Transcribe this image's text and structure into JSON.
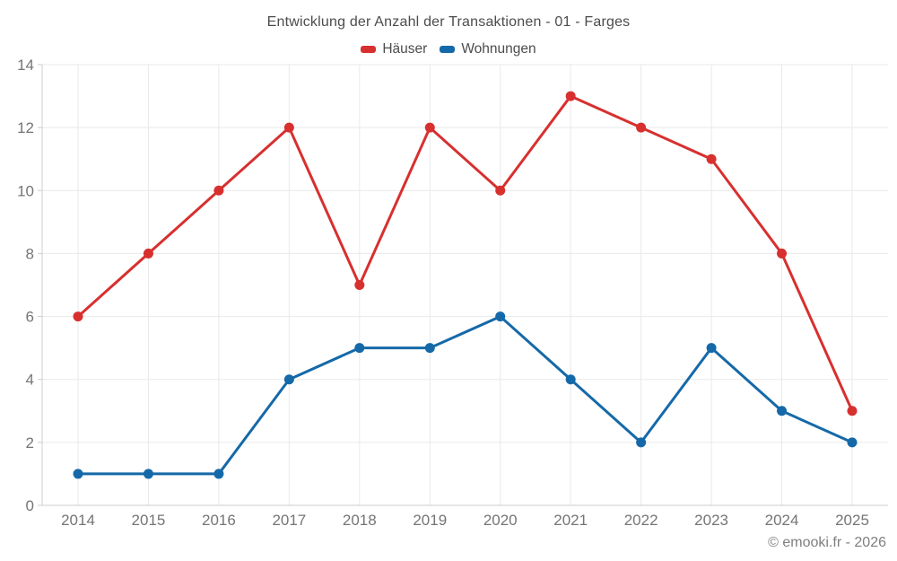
{
  "header": {
    "title": "Entwicklung der Anzahl der Transaktionen - 01 - Farges"
  },
  "footer": {
    "credit": "© emooki.fr - 2026"
  },
  "theme": {
    "background": "#ffffff",
    "grid_color": "#e9e9e9",
    "axis_color": "#cccccc",
    "tick_label_color": "#757575",
    "title_color": "#4c4c4c",
    "footer_color": "#7f7f7f"
  },
  "chart_data": {
    "type": "line",
    "title": "Entwicklung der Anzahl der Transaktionen - 01 - Farges",
    "categories": [
      "2014",
      "2015",
      "2016",
      "2017",
      "2018",
      "2019",
      "2020",
      "2021",
      "2022",
      "2023",
      "2024",
      "2025"
    ],
    "series": [
      {
        "name": "Häuser",
        "color": "#d7302f",
        "values": [
          6,
          8,
          10,
          12,
          7,
          12,
          10,
          13,
          12,
          11,
          8,
          3
        ]
      },
      {
        "name": "Wohnungen",
        "color": "#1569a8",
        "values": [
          1,
          1,
          1,
          4,
          5,
          5,
          6,
          4,
          2,
          5,
          3,
          2
        ]
      }
    ],
    "xlabel": "",
    "ylabel": "",
    "ylim": [
      0,
      14
    ],
    "ytick_step": 2,
    "yticks": [
      0,
      2,
      4,
      6,
      8,
      10,
      12,
      14
    ],
    "grid": true,
    "legend_position": "top",
    "marker": "circle",
    "annotation": "© emooki.fr - 2026"
  }
}
